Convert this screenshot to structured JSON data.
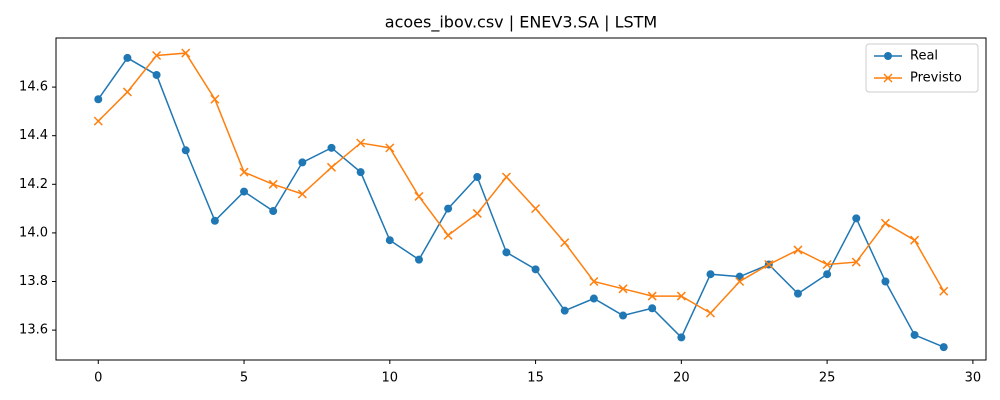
{
  "chart_data": {
    "type": "line",
    "title": "acoes_ibov.csv | ENEV3.SA | LSTM",
    "x": [
      0,
      1,
      2,
      3,
      4,
      5,
      6,
      7,
      8,
      9,
      10,
      11,
      12,
      13,
      14,
      15,
      16,
      17,
      18,
      19,
      20,
      21,
      22,
      23,
      24,
      25,
      26,
      27,
      28,
      29
    ],
    "series": [
      {
        "name": "Real",
        "color": "#1f77b4",
        "marker": "o",
        "values": [
          14.55,
          14.72,
          14.65,
          14.34,
          14.05,
          14.17,
          14.09,
          14.29,
          14.35,
          14.25,
          13.97,
          13.89,
          14.1,
          14.23,
          13.92,
          13.85,
          13.68,
          13.73,
          13.66,
          13.69,
          13.57,
          13.83,
          13.82,
          13.87,
          13.75,
          13.83,
          14.06,
          13.8,
          13.58,
          13.53
        ]
      },
      {
        "name": "Previsto",
        "color": "#ff7f0e",
        "marker": "x",
        "values": [
          14.46,
          14.58,
          14.73,
          14.74,
          14.55,
          14.25,
          14.2,
          14.16,
          14.27,
          14.37,
          14.35,
          14.15,
          13.99,
          14.08,
          14.23,
          14.1,
          13.96,
          13.8,
          13.77,
          13.74,
          13.74,
          13.67,
          13.8,
          13.87,
          13.93,
          13.87,
          13.88,
          14.04,
          13.97,
          13.76
        ]
      }
    ],
    "xlim": [
      -1.45,
      30.45
    ],
    "xticks": [
      0,
      5,
      10,
      15,
      20,
      25,
      30
    ],
    "ylim": [
      13.477,
      14.802
    ],
    "yticks": [
      13.6,
      13.8,
      {
        "value": 14,
        "label": "14.0"
      },
      14.2,
      14.4,
      14.6
    ],
    "grid": false,
    "legend": "upper right"
  }
}
